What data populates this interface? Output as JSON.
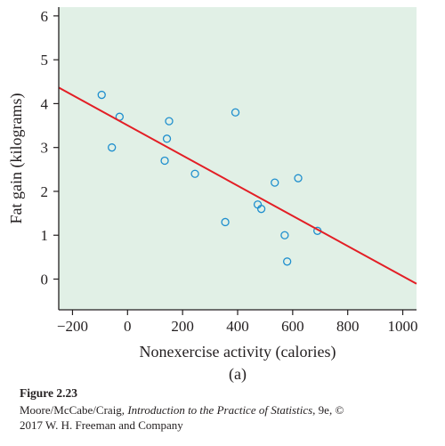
{
  "chart_data": {
    "type": "scatter",
    "xlabel": "Nonexercise activity (calories)",
    "ylabel": "Fat gain (kilograms)",
    "panel_label": "(a)",
    "xlim": [
      -250,
      1050
    ],
    "ylim": [
      -0.7,
      6.2
    ],
    "x_ticks": [
      -200,
      0,
      200,
      400,
      600,
      800,
      1000
    ],
    "x_tick_labels": [
      "−200",
      "0",
      "200",
      "400",
      "600",
      "800",
      "1000"
    ],
    "y_ticks": [
      0,
      1,
      2,
      3,
      4,
      5,
      6
    ],
    "y_tick_labels": [
      "0",
      "1",
      "2",
      "3",
      "4",
      "5",
      "6"
    ],
    "points": [
      {
        "x": -94,
        "y": 4.2
      },
      {
        "x": -57,
        "y": 3.0
      },
      {
        "x": -29,
        "y": 3.7
      },
      {
        "x": 135,
        "y": 2.7
      },
      {
        "x": 143,
        "y": 3.2
      },
      {
        "x": 151,
        "y": 3.6
      },
      {
        "x": 245,
        "y": 2.4
      },
      {
        "x": 355,
        "y": 1.3
      },
      {
        "x": 392,
        "y": 3.8
      },
      {
        "x": 473,
        "y": 1.7
      },
      {
        "x": 486,
        "y": 1.6
      },
      {
        "x": 535,
        "y": 2.2
      },
      {
        "x": 571,
        "y": 1.0
      },
      {
        "x": 580,
        "y": 0.4
      },
      {
        "x": 620,
        "y": 2.3
      },
      {
        "x": 690,
        "y": 1.1
      }
    ],
    "regression_line": {
      "intercept": 3.505,
      "slope": -0.00344
    },
    "colors": {
      "plot_background": "#e1f0e6",
      "points": "#1f8fce",
      "line": "#e31e25",
      "axis": "#231f20"
    },
    "grid": false,
    "legend": "none"
  },
  "caption": {
    "figure_label": "Figure 2.23",
    "authors": "Moore/McCabe/Craig, ",
    "book_title": "Introduction to the Practice of Statistics",
    "edition": ", 9e, ©",
    "copyright_line": "2017 W. H. Freeman and Company"
  }
}
